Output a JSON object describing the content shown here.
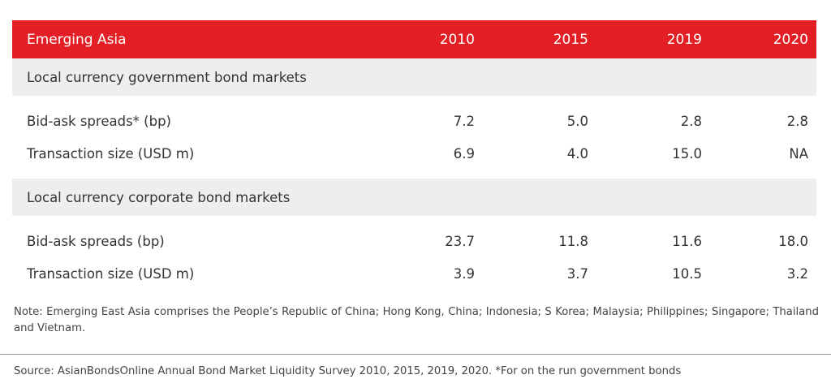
{
  "colors": {
    "header_bg": "#e31e24",
    "section_bg": "#eeeeee",
    "text": "#333333"
  },
  "table": {
    "header": {
      "label": "Emerging Asia",
      "years": [
        "2010",
        "2015",
        "2019",
        "2020"
      ]
    },
    "sections": [
      {
        "title": "Local currency government bond markets",
        "rows": [
          {
            "label": "Bid-ask spreads* (bp)",
            "values": [
              "7.2",
              "5.0",
              "2.8",
              "2.8"
            ]
          },
          {
            "label": "Transaction size (USD m)",
            "values": [
              "6.9",
              "4.0",
              "15.0",
              "NA"
            ]
          }
        ]
      },
      {
        "title": "Local currency corporate bond markets",
        "rows": [
          {
            "label": "Bid-ask spreads (bp)",
            "values": [
              "23.7",
              "11.8",
              "11.6",
              "18.0"
            ]
          },
          {
            "label": "Transaction size (USD m)",
            "values": [
              "3.9",
              "3.7",
              "10.5",
              "3.2"
            ]
          }
        ]
      }
    ]
  },
  "note": "Note: Emerging East Asia comprises the People’s Republic of China; Hong Kong, China; Indonesia; S Korea; Malaysia; Philippines; Singapore; Thailand and Vietnam.",
  "source": "Source: AsianBondsOnline Annual Bond Market Liquidity Survey 2010, 2015, 2019, 2020. *For on the run government bonds"
}
